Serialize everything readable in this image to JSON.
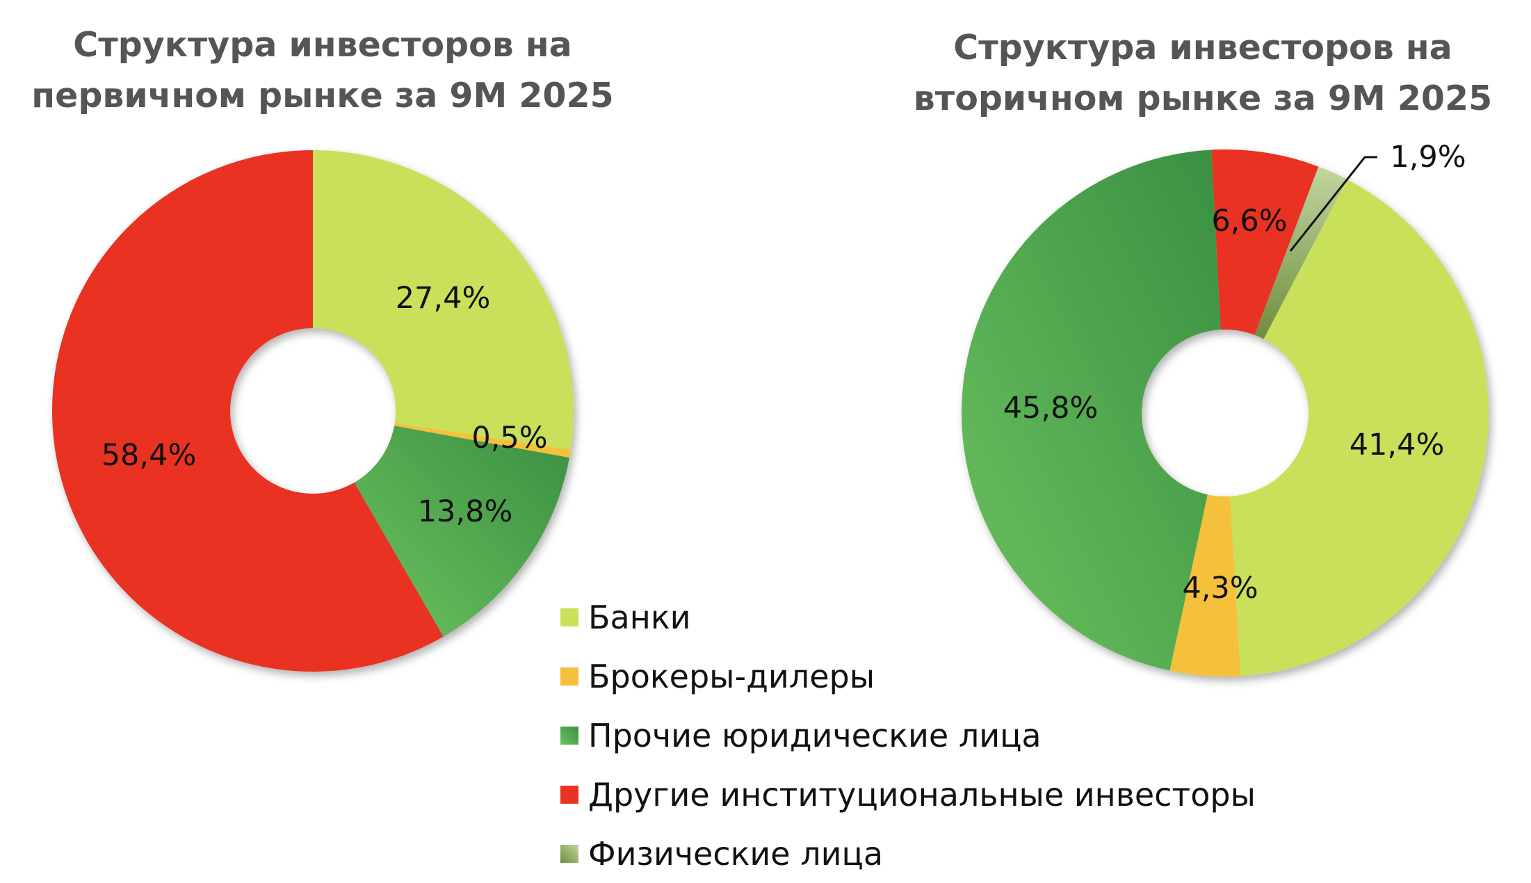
{
  "chart_data": [
    {
      "type": "pie",
      "title": "Структура инвесторов на первичном рынке за 9М 2025",
      "title_lines": [
        "Структура инвесторов на",
        "первичном рынке за 9М 2025"
      ],
      "categories": [
        "Банки",
        "Брокеры-дилеры",
        "Прочие юридические лица",
        "Другие институциональные инвесторы"
      ],
      "values": [
        27.4,
        0.5,
        13.8,
        58.4
      ],
      "labels": [
        "27,4%",
        "0,5%",
        "13,8%",
        "58,4%"
      ],
      "start_angle_deg": 0
    },
    {
      "type": "pie",
      "title": "Структура инвесторов на вторичном рынке за 9М 2025",
      "title_lines": [
        "Структура инвесторов на",
        "вторичном рынке за 9М 2025"
      ],
      "categories": [
        "Другие институциональные инвесторы",
        "Физические лица",
        "Банки",
        "Брокеры-дилеры",
        "Прочие юридические лица"
      ],
      "values": [
        6.6,
        1.9,
        41.4,
        4.3,
        45.8
      ],
      "labels": [
        "6,6%",
        "1,9%",
        "41,4%",
        "4,3%",
        "45,8%"
      ],
      "start_angle_deg": -3
    }
  ],
  "legend": {
    "placement": "bottom-center",
    "items": [
      {
        "label": "Банки",
        "color": "#c9e05a"
      },
      {
        "label": "Брокеры-дилеры",
        "color": "#f5c13d"
      },
      {
        "label": "Прочие юридические лица",
        "color": "#4aa651"
      },
      {
        "label": "Другие институциональные инвесторы",
        "color": "#e93324"
      },
      {
        "label": "Физические лица",
        "color": "#a9c07e"
      }
    ]
  },
  "colors": {
    "Банки": "#c9e05a",
    "Брокеры-дилеры": "#f5c13d",
    "Прочие юридические лица": "#4aa651",
    "Другие институциональные инвесторы": "#e93324",
    "Физические лица": "#a9c07e"
  }
}
